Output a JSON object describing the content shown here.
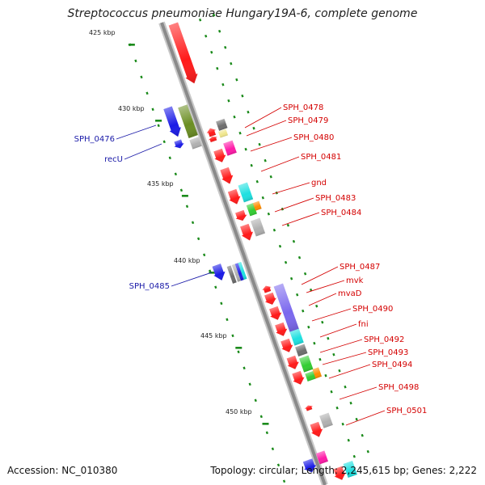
{
  "title": "Streptococcus pneumoniae Hungary19A-6, complete genome",
  "footer": {
    "accession": "Accession: NC_010380",
    "topology": "Topology: circular; Length: 2,245,615 bp; Genes: 2,222"
  },
  "colors": {
    "backbone": "#8a8a8a",
    "tick": "#1a8a1a",
    "red_label": "#d40000",
    "blue_label": "#1a1aa8",
    "gene_red": "#ff1a1a",
    "gene_blue": "#1a1ae6",
    "gene_olive": "#6b8e23",
    "gene_gray": "#b0b0b0",
    "gene_darkgray": "#6e6e6e",
    "gene_cyan": "#1ee0e0",
    "gene_magenta": "#ff1aa8",
    "gene_green": "#32cd32",
    "gene_orange": "#ff8c00",
    "gene_purple": "#7b68ee",
    "gene_khaki": "#f0e68c"
  },
  "kbp_labels": [
    "425 kbp",
    "430 kbp",
    "435 kbp",
    "440 kbp",
    "445 kbp",
    "450 kbp"
  ],
  "right_labels": [
    "SPH_0478",
    "SPH_0479",
    "SPH_0480",
    "SPH_0481",
    "gnd",
    "SPH_0483",
    "SPH_0484",
    "SPH_0487",
    "mvk",
    "mvaD",
    "SPH_0490",
    "fni",
    "SPH_0492",
    "SPH_0493",
    "SPH_0494",
    "SPH_0498",
    "SPH_0501"
  ],
  "left_labels": [
    "SPH_0476",
    "recU",
    "SPH_0485"
  ]
}
